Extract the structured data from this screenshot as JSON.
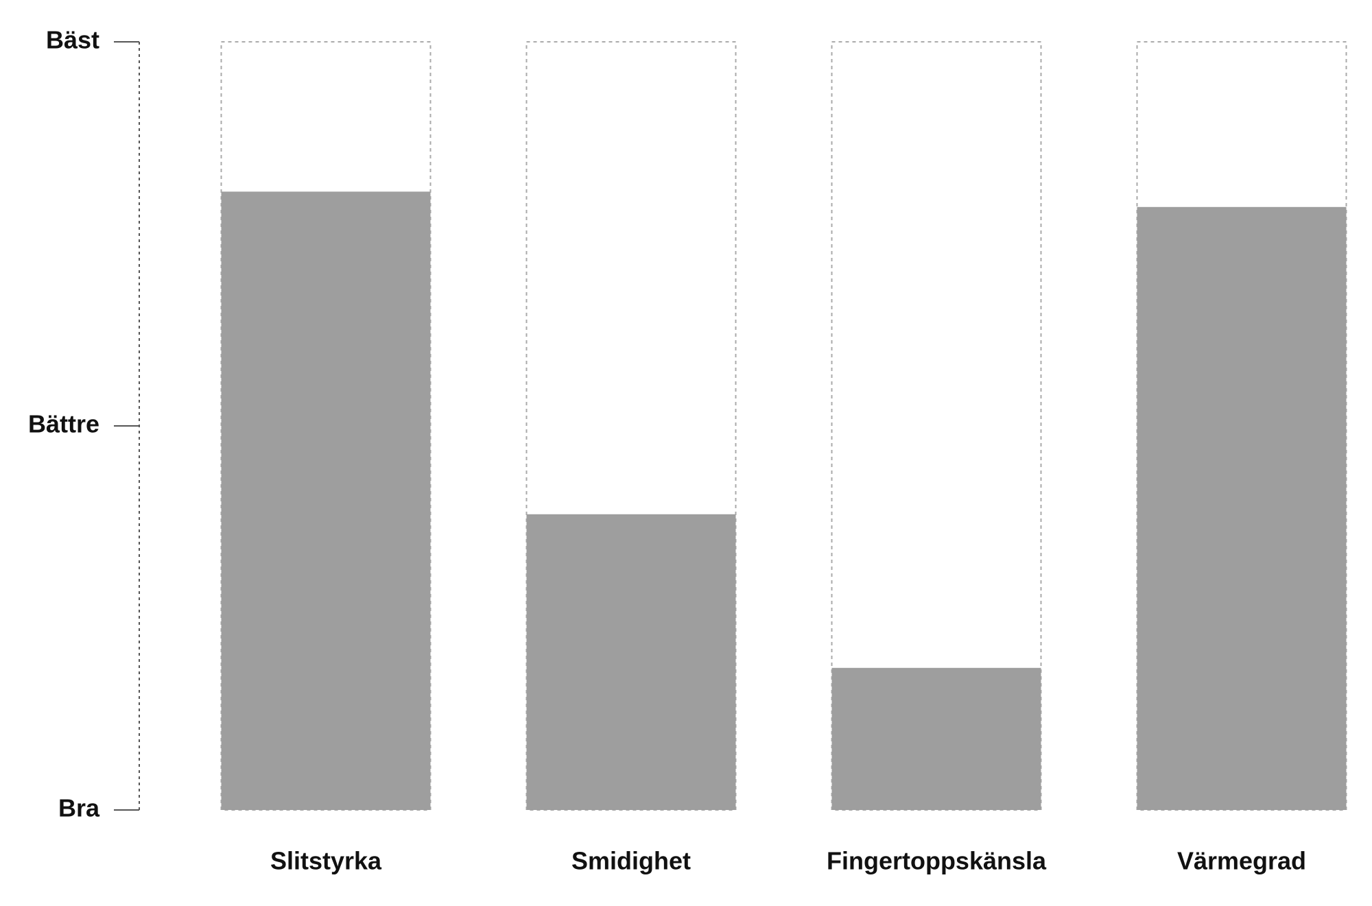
{
  "chart_data": {
    "type": "bar",
    "categories": [
      "Slitstyrka",
      "Smidighet",
      "Fingertoppskänsla",
      "Värmegrad"
    ],
    "values": [
      1.61,
      0.77,
      0.37,
      1.57
    ],
    "color": "#9e9e9e",
    "ylim": [
      0,
      2
    ],
    "yticks": [
      {
        "value": 0,
        "label": "Bra"
      },
      {
        "value": 1,
        "label": "Bättre"
      },
      {
        "value": 2,
        "label": "Bäst"
      }
    ]
  }
}
